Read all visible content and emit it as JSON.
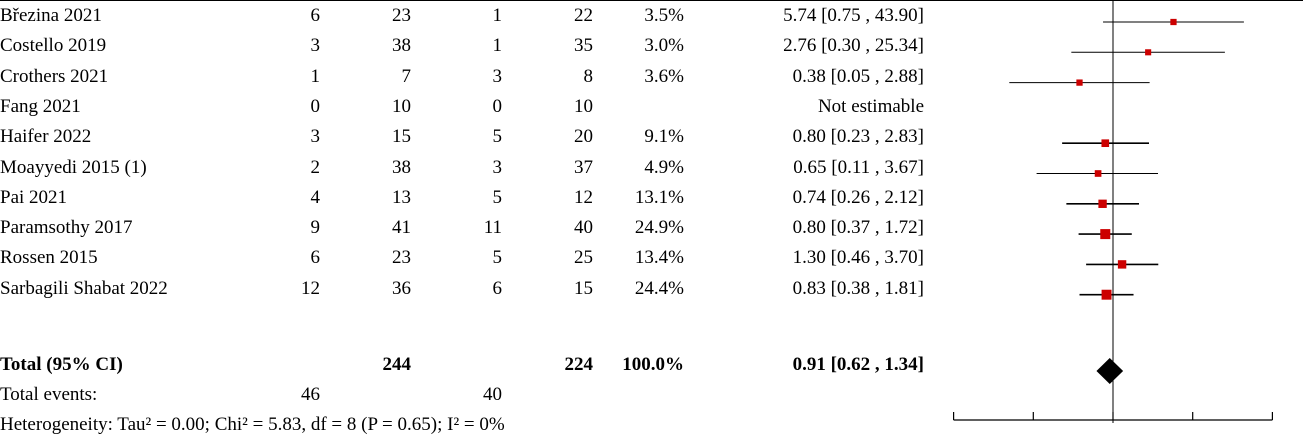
{
  "studies": [
    {
      "name": "Březina 2021",
      "e1": "6",
      "n1": "23",
      "e2": "1",
      "n2": "22",
      "weight": "3.5%",
      "ci_text": "5.74 [0.75 , 43.90]"
    },
    {
      "name": "Costello 2019",
      "e1": "3",
      "n1": "38",
      "e2": "1",
      "n2": "35",
      "weight": "3.0%",
      "ci_text": "2.76 [0.30 , 25.34]"
    },
    {
      "name": "Crothers 2021",
      "e1": "1",
      "n1": "7",
      "e2": "3",
      "n2": "8",
      "weight": "3.6%",
      "ci_text": "0.38 [0.05 , 2.88]"
    },
    {
      "name": "Fang 2021",
      "e1": "0",
      "n1": "10",
      "e2": "0",
      "n2": "10",
      "weight": "",
      "ci_text": "Not estimable"
    },
    {
      "name": "Haifer 2022",
      "e1": "3",
      "n1": "15",
      "e2": "5",
      "n2": "20",
      "weight": "9.1%",
      "ci_text": "0.80 [0.23 , 2.83]"
    },
    {
      "name": "Moayyedi 2015 (1)",
      "e1": "2",
      "n1": "38",
      "e2": "3",
      "n2": "37",
      "weight": "4.9%",
      "ci_text": "0.65 [0.11 , 3.67]"
    },
    {
      "name": "Pai 2021",
      "e1": "4",
      "n1": "13",
      "e2": "5",
      "n2": "12",
      "weight": "13.1%",
      "ci_text": "0.74 [0.26 , 2.12]"
    },
    {
      "name": "Paramsothy 2017",
      "e1": "9",
      "n1": "41",
      "e2": "11",
      "n2": "40",
      "weight": "24.9%",
      "ci_text": "0.80 [0.37 , 1.72]"
    },
    {
      "name": "Rossen 2015",
      "e1": "6",
      "n1": "23",
      "e2": "5",
      "n2": "25",
      "weight": "13.4%",
      "ci_text": "1.30 [0.46 , 3.70]"
    },
    {
      "name": "Sarbagili Shabat 2022",
      "e1": "12",
      "n1": "36",
      "e2": "6",
      "n2": "15",
      "weight": "24.4%",
      "ci_text": "0.83 [0.38 , 1.81]"
    }
  ],
  "total": {
    "label": "Total (95% CI)",
    "n1": "244",
    "n2": "224",
    "weight": "100.0%",
    "ci_text": "0.91 [0.62 , 1.34]"
  },
  "events": {
    "label": "Total events:",
    "e1": "46",
    "e2": "40"
  },
  "heterogeneity_text": "Heterogeneity: Tau² = 0.00; Chi² = 5.83, df = 8 (P = 0.65); I² = 0%",
  "colors": {
    "square": "#cc0000",
    "diamond": "#000000",
    "line": "#000000"
  },
  "chart_data": {
    "type": "forest",
    "scale": "log",
    "null_value": 1,
    "xlim": [
      0.01,
      100
    ],
    "studies": [
      {
        "name": "Březina 2021",
        "estimate": 5.74,
        "lower": 0.75,
        "upper": 43.9,
        "weight": 3.5
      },
      {
        "name": "Costello 2019",
        "estimate": 2.76,
        "lower": 0.3,
        "upper": 25.34,
        "weight": 3.0
      },
      {
        "name": "Crothers 2021",
        "estimate": 0.38,
        "lower": 0.05,
        "upper": 2.88,
        "weight": 3.6
      },
      {
        "name": "Fang 2021",
        "estimate": null,
        "lower": null,
        "upper": null,
        "weight": null
      },
      {
        "name": "Haifer 2022",
        "estimate": 0.8,
        "lower": 0.23,
        "upper": 2.83,
        "weight": 9.1
      },
      {
        "name": "Moayyedi 2015 (1)",
        "estimate": 0.65,
        "lower": 0.11,
        "upper": 3.67,
        "weight": 4.9
      },
      {
        "name": "Pai 2021",
        "estimate": 0.74,
        "lower": 0.26,
        "upper": 2.12,
        "weight": 13.1
      },
      {
        "name": "Paramsothy 2017",
        "estimate": 0.8,
        "lower": 0.37,
        "upper": 1.72,
        "weight": 24.9
      },
      {
        "name": "Rossen 2015",
        "estimate": 1.3,
        "lower": 0.46,
        "upper": 3.7,
        "weight": 13.4
      },
      {
        "name": "Sarbagili Shabat 2022",
        "estimate": 0.83,
        "lower": 0.38,
        "upper": 1.81,
        "weight": 24.4
      }
    ],
    "total": {
      "estimate": 0.91,
      "lower": 0.62,
      "upper": 1.34
    },
    "axis_ticks": [
      0.01,
      0.1,
      1,
      10,
      100
    ]
  }
}
